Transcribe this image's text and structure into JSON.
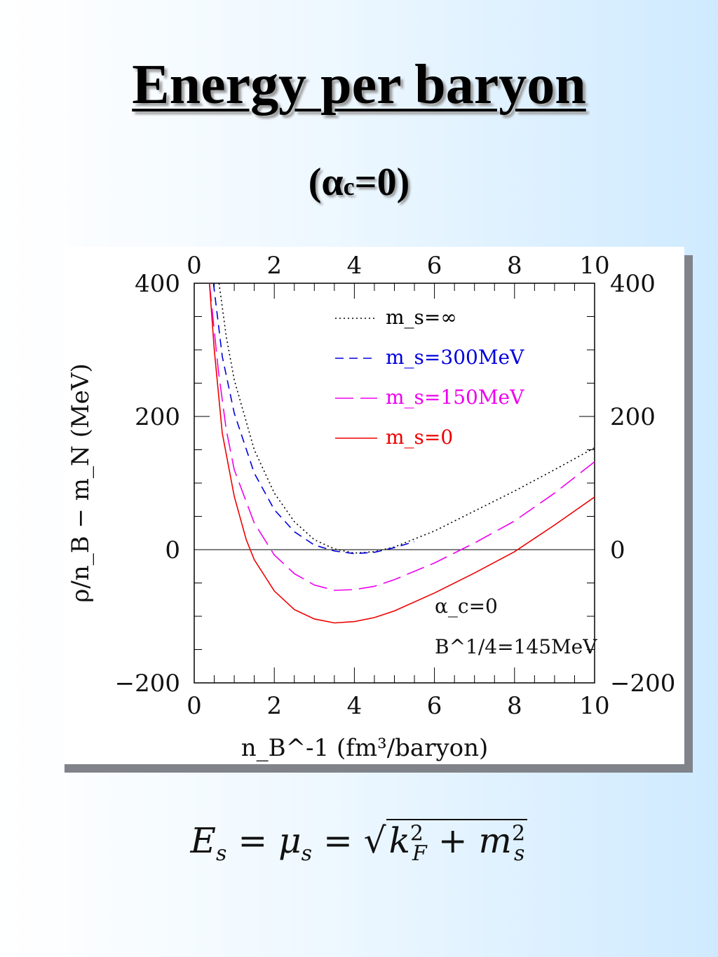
{
  "slide": {
    "title": "Energy per baryon",
    "subtitle_open": "(α",
    "subtitle_sub": "c",
    "subtitle_close": "=0)"
  },
  "chart_data": {
    "type": "line",
    "xlabel": "n_B^-1 (fm³/baryon)",
    "ylabel": "ρ/n_B − m_N (MeV)",
    "xlim": [
      0,
      10
    ],
    "ylim": [
      -200,
      400
    ],
    "x_ticks": [
      "0",
      "2",
      "4",
      "6",
      "8",
      "10"
    ],
    "y_ticks": [
      "−200",
      "0",
      "200",
      "400"
    ],
    "annotations": [
      "α_c=0",
      "B^1/4=145MeV"
    ],
    "legend_position": "top-right",
    "series": [
      {
        "name": "m_s=∞",
        "color": "#000000",
        "style": "dotted",
        "x": [
          0.62,
          0.8,
          1.0,
          1.5,
          2.0,
          2.5,
          3.0,
          3.5,
          4.0,
          4.5,
          5.0,
          6.0,
          7.0,
          8.0,
          9.0,
          10.0
        ],
        "y": [
          400,
          320,
          255,
          150,
          85,
          42,
          15,
          1,
          -5,
          -3,
          4,
          28,
          58,
          88,
          120,
          153
        ]
      },
      {
        "name": "m_s=300MeV",
        "color": "#0000dd",
        "style": "dashed",
        "x": [
          0.48,
          0.7,
          1.0,
          1.5,
          2.0,
          2.5,
          3.0,
          3.5,
          4.0,
          4.5,
          5.0,
          5.5
        ],
        "y": [
          400,
          290,
          205,
          115,
          60,
          27,
          7,
          -2,
          -6,
          -4,
          3,
          12
        ]
      },
      {
        "name": "m_s=150MeV",
        "color": "#ee00ee",
        "style": "longdash",
        "x": [
          0.38,
          0.6,
          0.8,
          1.0,
          1.5,
          2.0,
          2.5,
          3.0,
          3.5,
          4.0,
          4.5,
          5.0,
          6.0,
          7.0,
          8.0,
          9.0,
          10.0
        ],
        "y": [
          400,
          270,
          180,
          120,
          40,
          -8,
          -36,
          -53,
          -61,
          -60,
          -55,
          -45,
          -20,
          10,
          43,
          85,
          132
        ]
      },
      {
        "name": "m_s=0",
        "color": "#ee0000",
        "style": "solid",
        "x": [
          0.38,
          0.5,
          0.7,
          1.0,
          1.3,
          1.5,
          2.0,
          2.5,
          3.0,
          3.5,
          4.0,
          4.5,
          5.0,
          6.0,
          7.0,
          8.0,
          9.0,
          10.0
        ],
        "y": [
          400,
          300,
          175,
          80,
          15,
          -15,
          -62,
          -90,
          -104,
          -110,
          -108,
          -102,
          -92,
          -65,
          -35,
          -3,
          37,
          79
        ]
      }
    ]
  },
  "formula": {
    "lhs": "E",
    "lhs_sub": "s",
    "eq1": " = μ",
    "mu_sub": "s",
    "eq2": " = ",
    "sqrt_sign": "√",
    "k": "k",
    "k_sup": "2",
    "k_sub": "F",
    "plus": " + m",
    "m_sup": "2",
    "m_sub": "s"
  }
}
